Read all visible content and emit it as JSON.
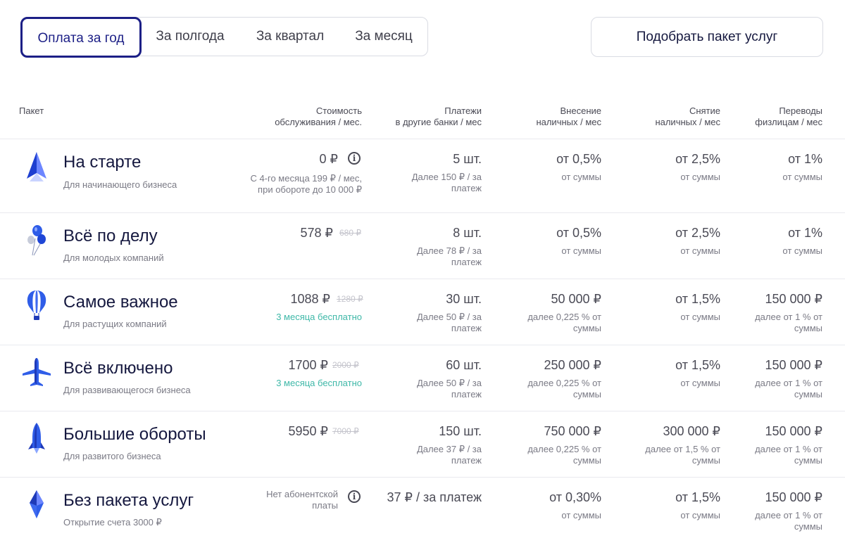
{
  "tabs": [
    "Оплата за год",
    "За полгода",
    "За квартал",
    "За месяц"
  ],
  "pick_button": "Подобрать пакет услуг",
  "headers": {
    "package": "Пакет",
    "cost_1": "Стоимость",
    "cost_2": "обслуживания / мес.",
    "payments_1": "Платежи",
    "payments_2": "в другие банки / мес",
    "deposit_1": "Внесение",
    "deposit_2": "наличных / мес",
    "withdraw_1": "Снятие",
    "withdraw_2": "наличных / мес",
    "transfers_1": "Переводы",
    "transfers_2": "физлицам / мес"
  },
  "packages": [
    {
      "icon": "paper-plane-icon",
      "name": "На старте",
      "desc": "Для начинающего бизнеса",
      "price": "0 ₽",
      "price_old": "",
      "price_sub_1": "С 4-го месяца 199 ₽ / мес,",
      "price_sub_2": "при обороте до 10 000 ₽",
      "promo": "",
      "payments": "5 шт.",
      "payments_sub_1": "Далее 150 ₽ / за",
      "payments_sub_2": "платеж",
      "deposit": "от 0,5%",
      "deposit_sub_1": "от суммы",
      "deposit_sub_2": "",
      "withdraw": "от 2,5%",
      "withdraw_sub_1": "от суммы",
      "withdraw_sub_2": "",
      "transfers": "от 1%",
      "transfers_sub_1": "от суммы",
      "transfers_sub_2": ""
    },
    {
      "icon": "balloons-icon",
      "name": "Всё по делу",
      "desc": "Для молодых компаний",
      "price": "578 ₽",
      "price_old": "680 ₽",
      "price_sub_1": "",
      "price_sub_2": "",
      "promo": "",
      "payments": "8 шт.",
      "payments_sub_1": "Далее 78 ₽ / за",
      "payments_sub_2": "платеж",
      "deposit": "от 0,5%",
      "deposit_sub_1": "от суммы",
      "deposit_sub_2": "",
      "withdraw": "от 2,5%",
      "withdraw_sub_1": "от суммы",
      "withdraw_sub_2": "",
      "transfers": "от 1%",
      "transfers_sub_1": "от суммы",
      "transfers_sub_2": ""
    },
    {
      "icon": "hot-air-balloon-icon",
      "name": "Самое важное",
      "desc": "Для растущих компаний",
      "price": "1088 ₽",
      "price_old": "1280 ₽",
      "price_sub_1": "",
      "price_sub_2": "",
      "promo": "3 месяца бесплатно",
      "payments": "30 шт.",
      "payments_sub_1": "Далее 50 ₽ / за",
      "payments_sub_2": "платеж",
      "deposit": "50 000 ₽",
      "deposit_sub_1": "далее 0,225 % от",
      "deposit_sub_2": "суммы",
      "withdraw": "от 1,5%",
      "withdraw_sub_1": "от суммы",
      "withdraw_sub_2": "",
      "transfers": "150 000 ₽",
      "transfers_sub_1": "далее от 1 % от",
      "transfers_sub_2": "суммы"
    },
    {
      "icon": "airplane-icon",
      "name": "Всё включено",
      "desc": "Для развивающегося бизнеса",
      "price": "1700 ₽",
      "price_old": "2000 ₽",
      "price_sub_1": "",
      "price_sub_2": "",
      "promo": "3 месяца бесплатно",
      "payments": "60 шт.",
      "payments_sub_1": "Далее 50 ₽ / за",
      "payments_sub_2": "платеж",
      "deposit": "250 000 ₽",
      "deposit_sub_1": "далее 0,225 % от",
      "deposit_sub_2": "суммы",
      "withdraw": "от 1,5%",
      "withdraw_sub_1": "от суммы",
      "withdraw_sub_2": "",
      "transfers": "150 000 ₽",
      "transfers_sub_1": "далее от 1 % от",
      "transfers_sub_2": "суммы"
    },
    {
      "icon": "rocket-icon",
      "name": "Большие обороты",
      "desc": "Для развитого бизнеса",
      "price": "5950 ₽",
      "price_old": "7000 ₽",
      "price_sub_1": "",
      "price_sub_2": "",
      "promo": "",
      "payments": "150 шт.",
      "payments_sub_1": "Далее 37 ₽ / за",
      "payments_sub_2": "платеж",
      "deposit": "750 000 ₽",
      "deposit_sub_1": "далее 0,225 % от",
      "deposit_sub_2": "суммы",
      "withdraw": "300 000 ₽",
      "withdraw_sub_1": "далее от 1,5 % от",
      "withdraw_sub_2": "суммы",
      "transfers": "150 000 ₽",
      "transfers_sub_1": "далее от 1 % от",
      "transfers_sub_2": "суммы"
    },
    {
      "icon": "crystal-icon",
      "name": "Без пакета услуг",
      "desc": "Открытие счета 3000 ₽",
      "price_note_1": "Нет абонентской",
      "price_note_2": "платы",
      "payments": "37 ₽ / за платеж",
      "payments_sub_1": "",
      "payments_sub_2": "",
      "deposit": "от 0,30%",
      "deposit_sub_1": "от суммы",
      "deposit_sub_2": "",
      "withdraw": "от 1,5%",
      "withdraw_sub_1": "от суммы",
      "withdraw_sub_2": "",
      "transfers": "150 000 ₽",
      "transfers_sub_1": "далее от 1 % от",
      "transfers_sub_2": "суммы"
    }
  ]
}
